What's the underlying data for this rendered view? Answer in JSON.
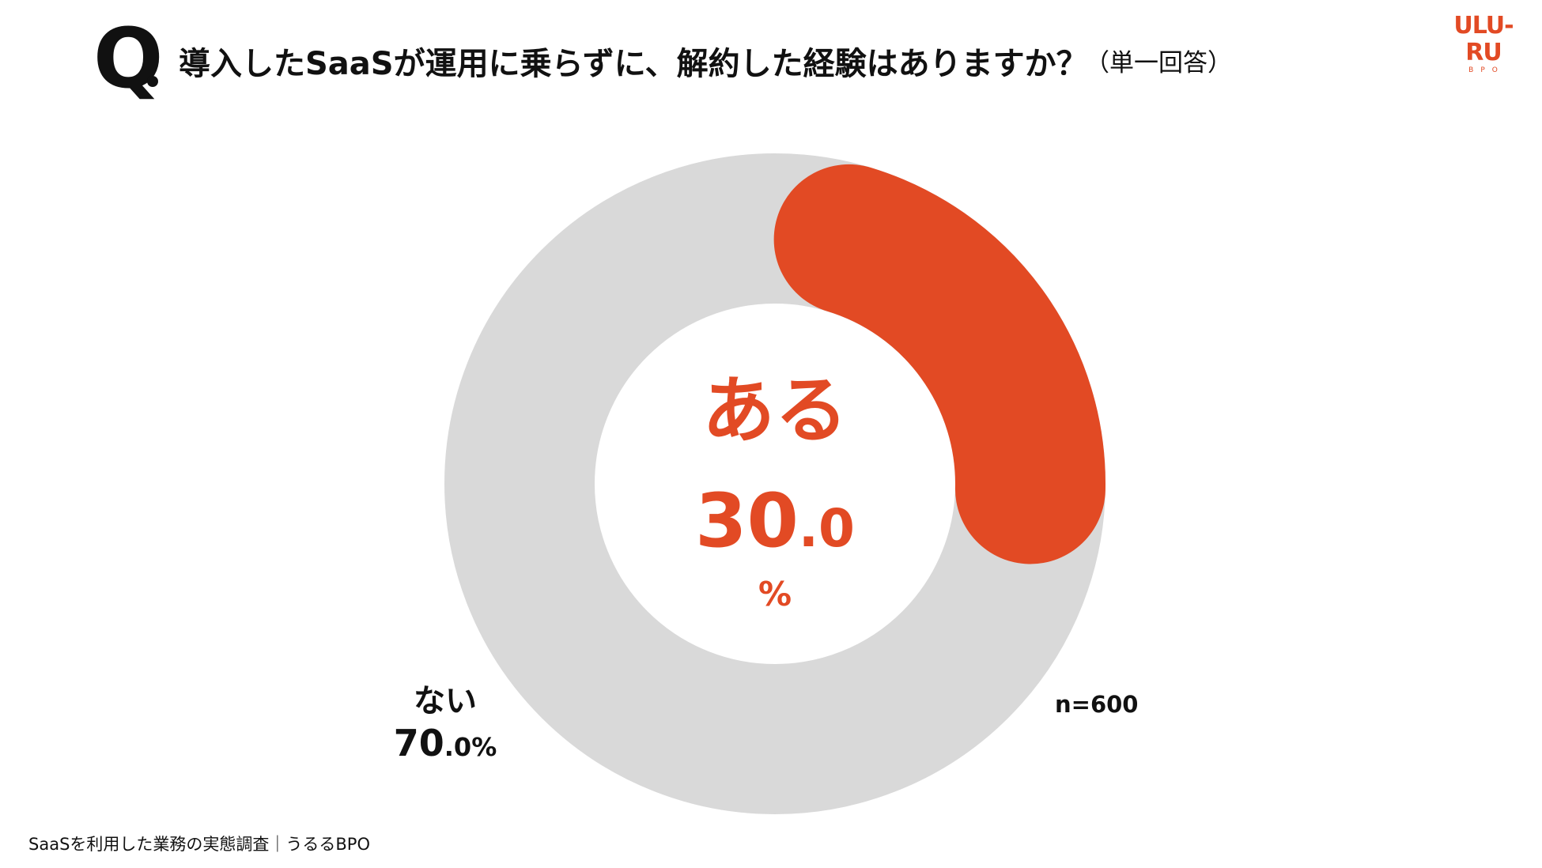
{
  "header": {
    "q_mark": "Q",
    "question": "導入したSaaSが運用に乗らずに、解約した経験はありますか？",
    "question_note": "（単一回答）"
  },
  "logo": {
    "main": "ULU-RU",
    "sub": "BPO"
  },
  "chart_data": {
    "type": "pie",
    "donut": true,
    "title": "",
    "unit": "%",
    "categories": [
      "ある",
      "ない"
    ],
    "values": [
      30.0,
      70.0
    ],
    "colors": [
      "#e24a24",
      "#d9d9d9"
    ],
    "n_label": "n=600",
    "center": {
      "category": "ある",
      "value_int": "30",
      "value_dec": ".0",
      "unit": "%"
    },
    "outside": {
      "category": "ない",
      "value_int": "70",
      "value_dec": ".0",
      "unit": "%"
    }
  },
  "footer": {
    "source": "SaaSを利用した業務の実態調査｜うるるBPO"
  }
}
